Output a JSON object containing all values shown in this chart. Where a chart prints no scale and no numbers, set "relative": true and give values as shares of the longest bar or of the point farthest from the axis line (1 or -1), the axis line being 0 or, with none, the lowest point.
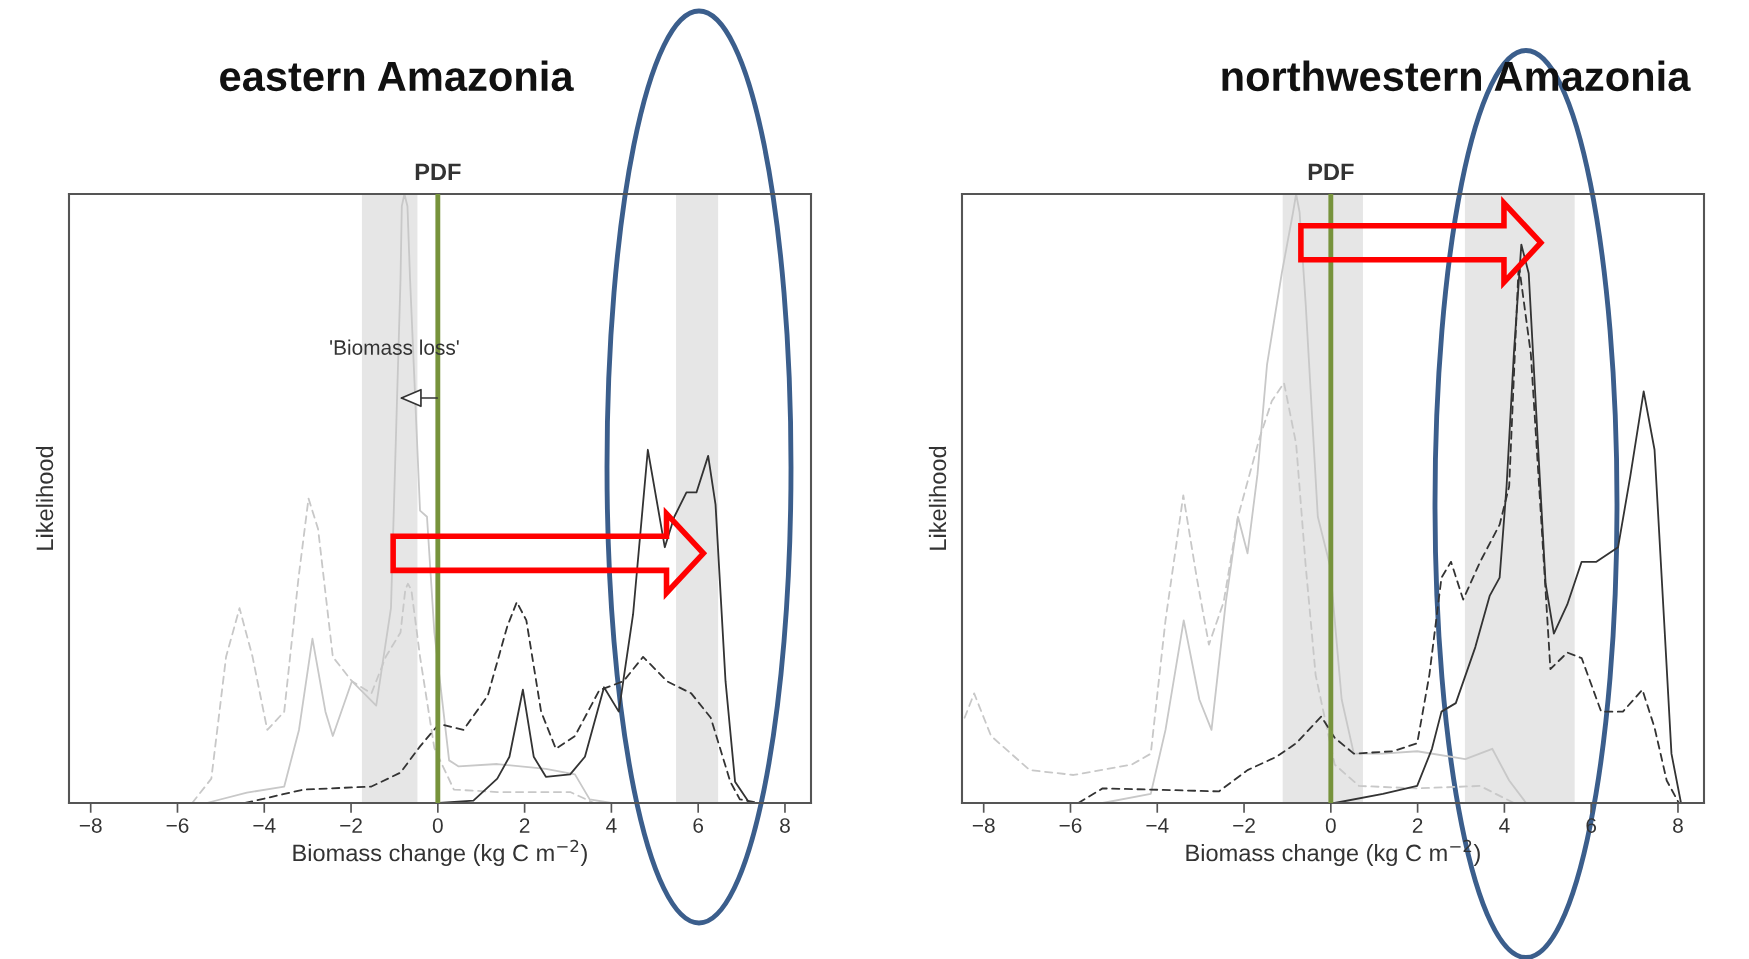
{
  "chart_data": [
    {
      "type": "line",
      "title": "eastern Amazonia",
      "subtitle": "PDF",
      "xlabel": "Biomass change (kg C m$^{−2}$)",
      "ylabel": "Likelihood",
      "relative": true,
      "xlim": [
        -8.5,
        8.6
      ],
      "xticks": [
        -8,
        -6,
        -4,
        -2,
        0,
        2,
        4,
        6,
        8
      ],
      "grid": false,
      "series": [
        {
          "color": "#c8c8c8",
          "line_style": "solid",
          "x": [
            -5.66,
            -5.33,
            -4.4,
            -3.54,
            -3.2,
            -2.89,
            -2.59,
            -2.42,
            -1.98,
            -1.42,
            -1.08,
            -0.86,
            -0.83,
            -0.77,
            -0.7,
            -0.64,
            -0.41,
            -0.25,
            -0.08,
            0.26,
            0.48,
            1.37,
            2.49,
            3.16,
            3.5,
            4.0
          ],
          "values": [
            0,
            0.0,
            0.017,
            0.027,
            0.12,
            0.27,
            0.15,
            0.11,
            0.2,
            0.16,
            0.32,
            0.86,
            0.98,
            1.0,
            0.98,
            0.86,
            0.48,
            0.47,
            0.28,
            0.07,
            0.06,
            0.064,
            0.056,
            0.047,
            0.006,
            0
          ]
        },
        {
          "color": "#c8c8c8",
          "line_style": "dashed",
          "x": [
            -5.66,
            -5.22,
            -4.88,
            -4.57,
            -4.27,
            -3.93,
            -3.54,
            -3.21,
            -2.98,
            -2.76,
            -2.42,
            -1.98,
            -1.53,
            -1.2,
            -0.86,
            -0.75,
            -0.69,
            -0.61,
            -0.41,
            -0.08,
            0.37,
            1.37,
            3.05,
            3.6
          ],
          "values": [
            0,
            0.04,
            0.24,
            0.32,
            0.24,
            0.12,
            0.15,
            0.37,
            0.5,
            0.45,
            0.24,
            0.2,
            0.18,
            0.24,
            0.28,
            0.35,
            0.36,
            0.35,
            0.24,
            0.09,
            0.022,
            0.018,
            0.018,
            0
          ]
        },
        {
          "color": "#333333",
          "line_style": "solid",
          "x": [
            -1.31,
            0.03,
            0.82,
            1.37,
            1.65,
            1.96,
            2.21,
            2.49,
            3.05,
            3.39,
            3.83,
            4.17,
            4.5,
            4.84,
            5.06,
            5.23,
            5.45,
            5.73,
            5.96,
            6.23,
            6.4,
            6.63,
            6.85,
            7.18
          ],
          "values": [
            0,
            0,
            0.004,
            0.04,
            0.076,
            0.186,
            0.076,
            0.043,
            0.047,
            0.076,
            0.19,
            0.15,
            0.31,
            0.58,
            0.49,
            0.42,
            0.47,
            0.51,
            0.51,
            0.57,
            0.49,
            0.2,
            0.035,
            0
          ]
        },
        {
          "color": "#333333",
          "line_style": "dashed",
          "x": [
            -4.44,
            -3.1,
            -1.53,
            -0.86,
            -0.41,
            0.03,
            0.59,
            1.15,
            1.6,
            1.82,
            2.04,
            2.38,
            2.72,
            3.16,
            3.72,
            4.28,
            4.73,
            5.28,
            5.84,
            6.29,
            6.74,
            6.96,
            7.4
          ],
          "values": [
            0,
            0.022,
            0.027,
            0.05,
            0.093,
            0.13,
            0.12,
            0.176,
            0.29,
            0.33,
            0.3,
            0.15,
            0.089,
            0.11,
            0.185,
            0.2,
            0.24,
            0.2,
            0.18,
            0.14,
            0.035,
            0.006,
            0
          ]
        }
      ],
      "bands": [
        {
          "axis": "x",
          "from": -1.75,
          "to": -0.47,
          "color": "#e6e6e6"
        },
        {
          "axis": "x",
          "from": 5.49,
          "to": 6.46,
          "color": "#e6e6e6"
        }
      ],
      "ref_lines": [
        {
          "axis": "x",
          "value": 0,
          "color": "#77933c",
          "line_style": "solid"
        }
      ],
      "annotations": [
        "'Biomass loss'"
      ]
    },
    {
      "type": "line",
      "title": "northwestern Amazonia",
      "subtitle": "PDF",
      "xlabel": "Biomass change (kg C m$^{−2}$)",
      "ylabel": "Likelihood",
      "relative": true,
      "xlim": [
        -8.5,
        8.6
      ],
      "xticks": [
        -8,
        -6,
        -4,
        -2,
        0,
        2,
        4,
        6,
        8
      ],
      "grid": false,
      "series": [
        {
          "color": "#c8c8c8",
          "line_style": "solid",
          "x": [
            -7.5,
            -5.26,
            -4.15,
            -3.81,
            -3.39,
            -3.03,
            -2.75,
            -2.42,
            -2.14,
            -1.92,
            -1.69,
            -1.47,
            -1.13,
            -0.87,
            -0.8,
            -0.72,
            -0.58,
            -0.3,
            -0.02,
            0.25,
            0.53,
            1.2,
            1.99,
            3.1,
            3.72,
            4.11,
            4.5
          ],
          "values": [
            0,
            0,
            0.015,
            0.12,
            0.3,
            0.17,
            0.12,
            0.33,
            0.47,
            0.41,
            0.54,
            0.72,
            0.87,
            0.97,
            1.0,
            0.97,
            0.82,
            0.47,
            0.39,
            0.17,
            0.081,
            0.081,
            0.085,
            0.072,
            0.089,
            0.037,
            0
          ]
        },
        {
          "color": "#c8c8c8",
          "line_style": "dashed",
          "x": [
            -8.44,
            -8.22,
            -7.83,
            -6.94,
            -5.93,
            -4.59,
            -4.15,
            -3.81,
            -3.4,
            -3.09,
            -2.81,
            -2.47,
            -2.14,
            -1.64,
            -1.36,
            -1.08,
            -0.8,
            -0.58,
            -0.35,
            0.09,
            0.65,
            1.99,
            3.44,
            4.22
          ],
          "values": [
            0.14,
            0.18,
            0.11,
            0.054,
            0.046,
            0.063,
            0.081,
            0.3,
            0.505,
            0.37,
            0.26,
            0.33,
            0.47,
            0.6,
            0.66,
            0.69,
            0.59,
            0.39,
            0.21,
            0.063,
            0.028,
            0.024,
            0.028,
            0
          ]
        },
        {
          "color": "#333333",
          "line_style": "solid",
          "x": [
            -1.69,
            0.09,
            1.2,
            1.99,
            2.33,
            2.55,
            2.88,
            3.33,
            3.66,
            3.89,
            4.05,
            4.22,
            4.39,
            4.56,
            4.78,
            4.95,
            5.14,
            5.45,
            5.78,
            6.12,
            6.62,
            6.9,
            7.21,
            7.46,
            7.68,
            7.85,
            8.07
          ],
          "values": [
            0,
            0,
            0.015,
            0.028,
            0.089,
            0.15,
            0.164,
            0.256,
            0.34,
            0.37,
            0.52,
            0.74,
            0.917,
            0.87,
            0.58,
            0.36,
            0.278,
            0.326,
            0.396,
            0.396,
            0.42,
            0.536,
            0.676,
            0.58,
            0.3,
            0.081,
            0
          ]
        },
        {
          "color": "#333333",
          "line_style": "dashed",
          "x": [
            -5.82,
            -5.26,
            -3.59,
            -2.58,
            -1.92,
            -1.25,
            -0.8,
            -0.22,
            0.09,
            0.53,
            1.43,
            1.99,
            2.27,
            2.55,
            2.77,
            3.05,
            3.44,
            3.89,
            4.11,
            4.33,
            4.61,
            4.84,
            5.06,
            5.45,
            5.78,
            6.23,
            6.73,
            7.18,
            7.46,
            7.74,
            8.02
          ],
          "values": [
            0,
            0.024,
            0.021,
            0.019,
            0.054,
            0.076,
            0.098,
            0.142,
            0.107,
            0.081,
            0.085,
            0.098,
            0.21,
            0.37,
            0.396,
            0.334,
            0.396,
            0.457,
            0.52,
            0.886,
            0.737,
            0.475,
            0.22,
            0.247,
            0.238,
            0.15,
            0.15,
            0.186,
            0.124,
            0.037,
            0
          ]
        }
      ],
      "bands": [
        {
          "axis": "x",
          "from": -1.11,
          "to": 0.74,
          "color": "#e6e6e6"
        },
        {
          "axis": "x",
          "from": 3.09,
          "to": 5.62,
          "color": "#e6e6e6"
        }
      ],
      "ref_lines": [
        {
          "axis": "x",
          "value": 0,
          "color": "#77933c",
          "line_style": "solid"
        }
      ]
    }
  ]
}
